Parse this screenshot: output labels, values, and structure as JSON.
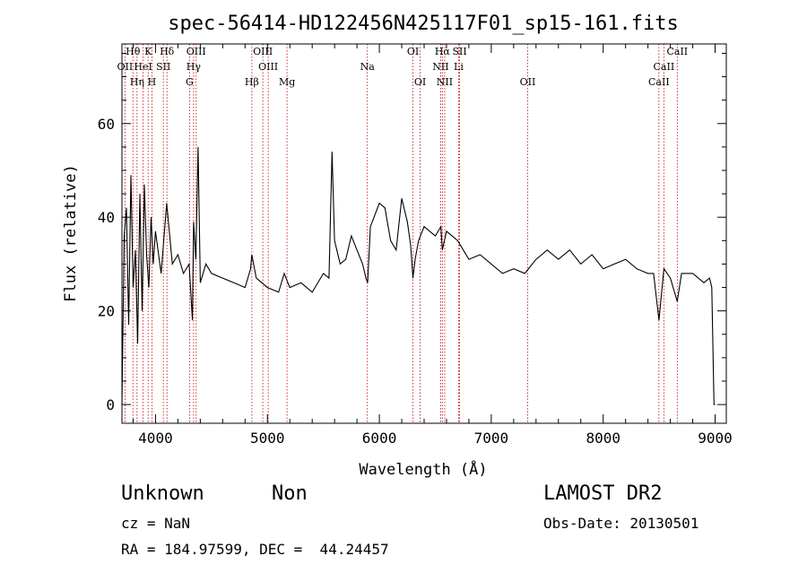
{
  "chart_data": {
    "type": "line",
    "title": "spec-56414-HD122456N425117F01_sp15-161.fits",
    "xlabel": "Wavelength (Å)",
    "ylabel": "Flux (relative)",
    "xlim": [
      3700,
      9100
    ],
    "ylim": [
      -4,
      77
    ],
    "x_ticks": [
      4000,
      5000,
      6000,
      7000,
      8000,
      9000
    ],
    "y_ticks": [
      0,
      20,
      40,
      60
    ],
    "grid": false,
    "legend": "none",
    "line_color": "#000000",
    "marker_color": "#cc0000",
    "series": [
      {
        "x": [
          3700,
          3720,
          3740,
          3760,
          3780,
          3800,
          3820,
          3840,
          3860,
          3880,
          3900,
          3920,
          3940,
          3960,
          3980,
          4000,
          4050,
          4100,
          4150,
          4200,
          4250,
          4300,
          4330,
          4340,
          4360,
          4380,
          4400,
          4450,
          4500,
          4600,
          4700,
          4800,
          4850,
          4860,
          4900,
          5000,
          5100,
          5150,
          5200,
          5300,
          5400,
          5500,
          5550,
          5577,
          5600,
          5650,
          5700,
          5750,
          5800,
          5850,
          5880,
          5895,
          5920,
          6000,
          6050,
          6100,
          6150,
          6200,
          6250,
          6280,
          6300,
          6320,
          6350,
          6400,
          6450,
          6500,
          6550,
          6563,
          6600,
          6650,
          6700,
          6750,
          6800,
          6900,
          7000,
          7100,
          7200,
          7300,
          7400,
          7500,
          7600,
          7700,
          7800,
          7900,
          8000,
          8100,
          8200,
          8300,
          8400,
          8450,
          8498,
          8542,
          8600,
          8662,
          8700,
          8800,
          8850,
          8900,
          8950,
          8970,
          8990,
          9000
        ],
        "y": [
          0,
          36,
          42,
          17,
          49,
          25,
          33,
          13,
          45,
          20,
          47,
          32,
          25,
          40,
          30,
          37,
          28,
          43,
          30,
          32,
          28,
          30,
          18,
          39,
          31,
          55,
          26,
          30,
          28,
          27,
          26,
          25,
          29,
          32,
          27,
          25,
          24,
          28,
          25,
          26,
          24,
          28,
          27,
          54,
          35,
          30,
          31,
          36,
          33,
          30,
          27,
          26,
          38,
          43,
          42,
          35,
          33,
          44,
          39,
          34,
          27,
          31,
          35,
          38,
          37,
          36,
          38,
          33,
          37,
          36,
          35,
          33,
          31,
          32,
          30,
          28,
          29,
          28,
          31,
          33,
          31,
          33,
          30,
          32,
          29,
          30,
          31,
          29,
          28,
          28,
          18,
          29,
          27,
          22,
          28,
          28,
          27,
          26,
          27,
          25,
          0,
          0
        ]
      }
    ],
    "line_labels": [
      {
        "text": "Hθ",
        "row": 1,
        "x": 3798
      },
      {
        "text": "K",
        "row": 1,
        "x": 3934
      },
      {
        "text": "Hδ",
        "row": 1,
        "x": 4102
      },
      {
        "text": "OIII",
        "row": 1,
        "x": 4363
      },
      {
        "text": "OIII",
        "row": 1,
        "x": 4959
      },
      {
        "text": "OI",
        "row": 1,
        "x": 6300
      },
      {
        "text": "Hα",
        "row": 1,
        "x": 6563
      },
      {
        "text": "SII",
        "row": 1,
        "x": 6717
      },
      {
        "text": "CaII",
        "row": 1,
        "x": 8662
      },
      {
        "text": "OII",
        "row": 2,
        "x": 3727
      },
      {
        "text": "HeI",
        "row": 2,
        "x": 3889
      },
      {
        "text": "SII",
        "row": 2,
        "x": 4070
      },
      {
        "text": "Hγ",
        "row": 2,
        "x": 4340
      },
      {
        "text": "OIII",
        "row": 2,
        "x": 5007
      },
      {
        "text": "Na",
        "row": 2,
        "x": 5893
      },
      {
        "text": "NII",
        "row": 2,
        "x": 6548
      },
      {
        "text": "Li",
        "row": 2,
        "x": 6708
      },
      {
        "text": "CaII",
        "row": 2,
        "x": 8542
      },
      {
        "text": "Hη",
        "row": 3,
        "x": 3835
      },
      {
        "text": "H",
        "row": 3,
        "x": 3968
      },
      {
        "text": "G",
        "row": 3,
        "x": 4304
      },
      {
        "text": "Hβ",
        "row": 3,
        "x": 4861
      },
      {
        "text": "Mg",
        "row": 3,
        "x": 5175
      },
      {
        "text": "OI",
        "row": 3,
        "x": 6364
      },
      {
        "text": "NII",
        "row": 3,
        "x": 6584
      },
      {
        "text": "OII",
        "row": 3,
        "x": 7325
      },
      {
        "text": "CaII",
        "row": 3,
        "x": 8498
      }
    ],
    "line_positions": [
      3727,
      3798,
      3835,
      3889,
      3934,
      3968,
      4070,
      4102,
      4304,
      4340,
      4363,
      4861,
      4959,
      5007,
      5175,
      5893,
      6300,
      6364,
      6548,
      6563,
      6584,
      6708,
      6717,
      7325,
      8498,
      8542,
      8662
    ]
  },
  "footer": {
    "object_class": "Unknown",
    "object_subclass": "Non",
    "survey": "LAMOST DR2",
    "redshift": "cz = NaN",
    "obs_date": "Obs-Date: 20130501",
    "coordinates": "RA = 184.97599, DEC =  44.24457"
  }
}
